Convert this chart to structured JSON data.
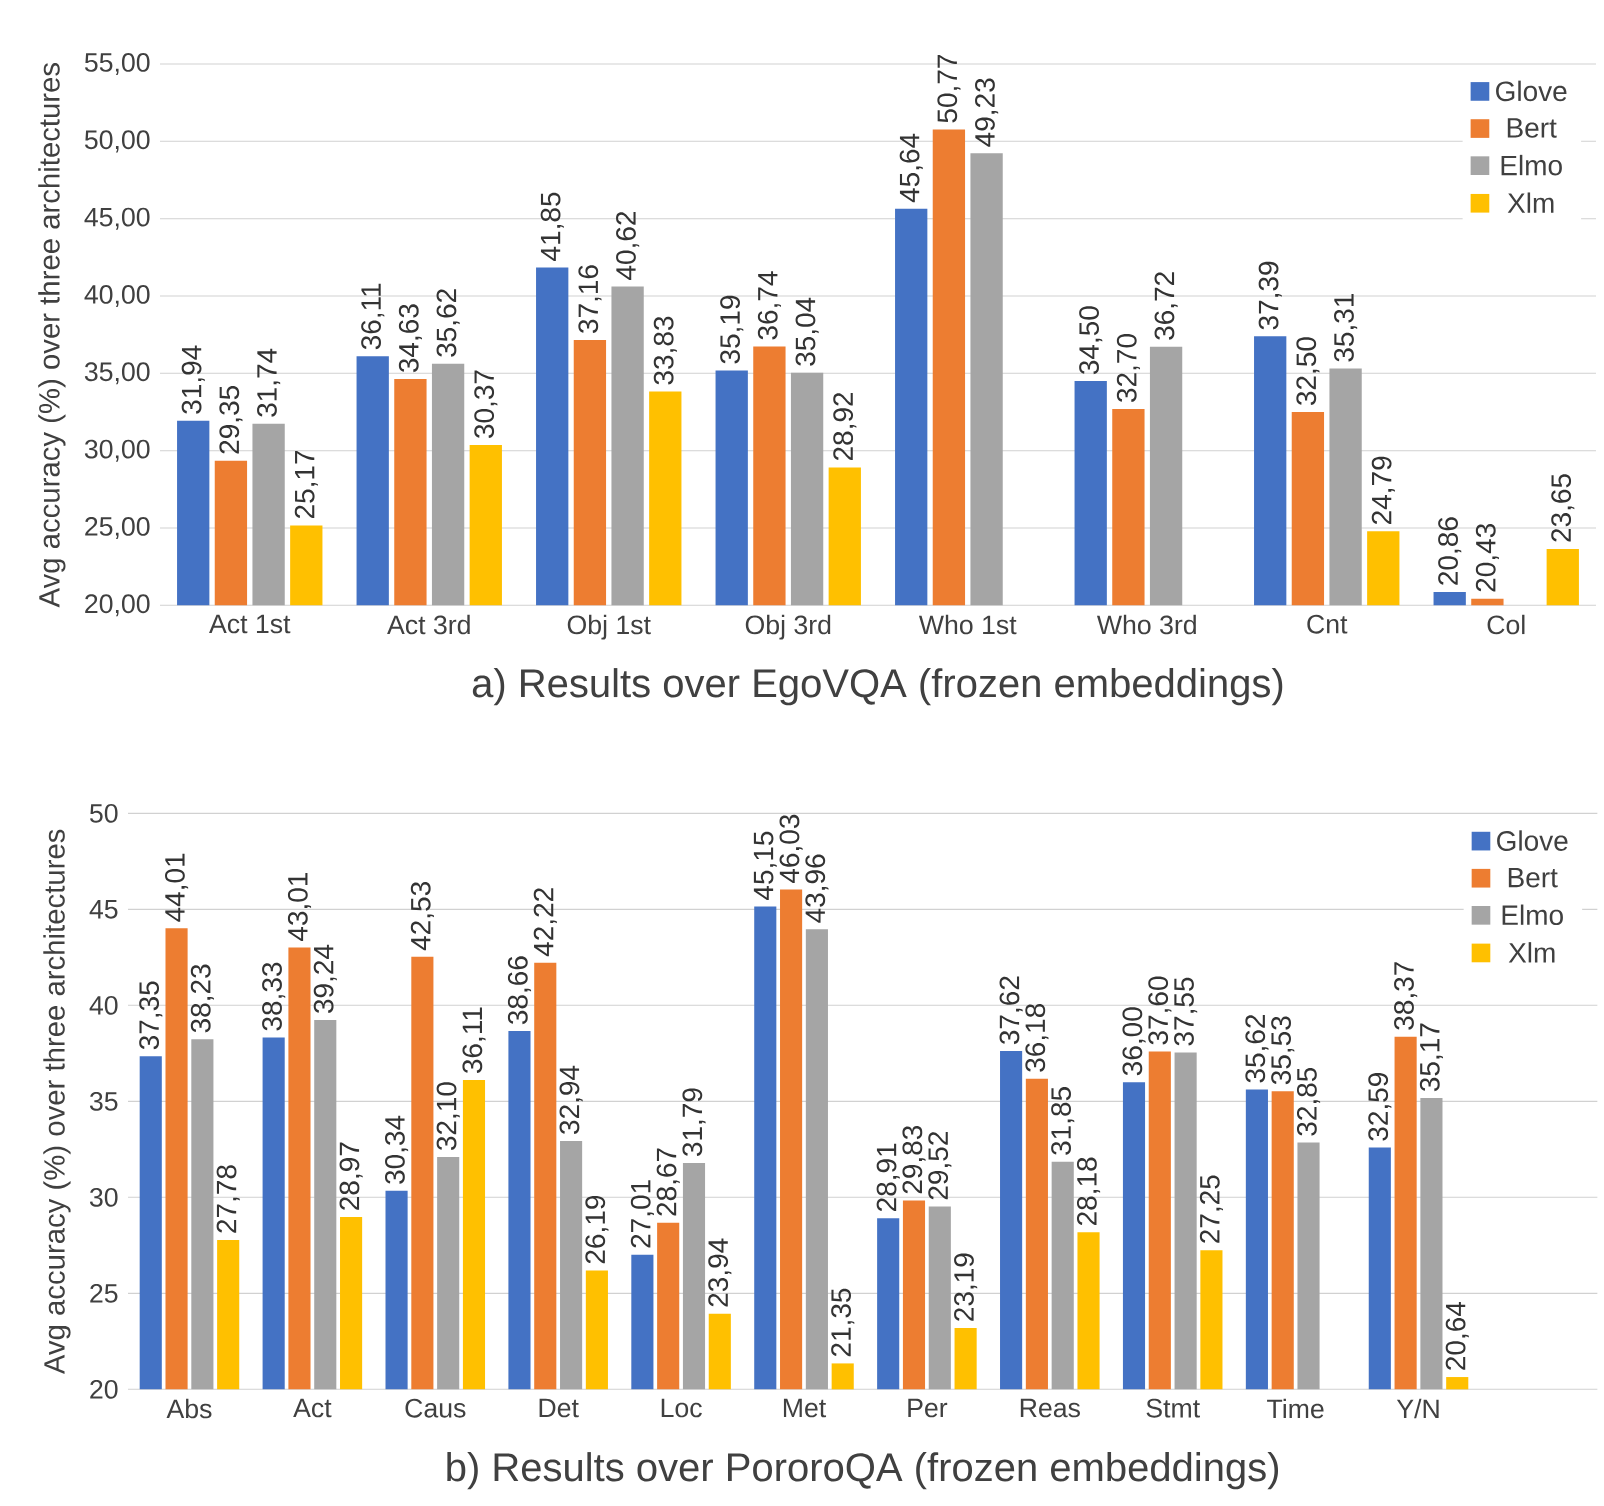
{
  "chart_data": [
    {
      "type": "bar",
      "title": "a) Results over EgoVQA (frozen embeddings)",
      "ylabel": "Avg accuracy (%) over three architectures",
      "categories": [
        "Act 1st",
        "Act 3rd",
        "Obj 1st",
        "Obj 3rd",
        "Who 1st",
        "Who 3rd",
        "Cnt",
        "Col"
      ],
      "series": [
        {
          "name": "Glove",
          "color": "#4472c4",
          "values": [
            31.94,
            36.11,
            41.85,
            35.19,
            45.64,
            34.5,
            37.39,
            20.86
          ],
          "value_labels": [
            "31,94",
            "36,11",
            "41,85",
            "35,19",
            "45,64",
            "34,50",
            "37,39",
            "20,86"
          ]
        },
        {
          "name": "Bert",
          "color": "#ed7d31",
          "values": [
            29.35,
            34.63,
            37.16,
            36.74,
            50.77,
            32.7,
            32.5,
            20.43
          ],
          "value_labels": [
            "29,35",
            "34,63",
            "37,16",
            "36,74",
            "50,77",
            "32,70",
            "32,50",
            "20,43"
          ]
        },
        {
          "name": "Elmo",
          "color": "#a5a5a5",
          "values": [
            31.74,
            35.62,
            40.62,
            35.04,
            49.23,
            36.72,
            35.31,
            null
          ],
          "value_labels": [
            "31,74",
            "35,62",
            "40,62",
            "35,04",
            "49,23",
            "36,72",
            "35,31",
            null
          ]
        },
        {
          "name": "Xlm",
          "color": "#ffc000",
          "values": [
            25.17,
            30.37,
            33.83,
            28.92,
            null,
            null,
            24.79,
            23.65
          ],
          "value_labels": [
            "25,17",
            "30,37",
            "33,83",
            "28,92",
            null,
            null,
            "24,79",
            "23,65"
          ]
        }
      ],
      "ylim": [
        20,
        55
      ],
      "yticks": [
        {
          "value": 20,
          "label": "20,00"
        },
        {
          "value": 25,
          "label": "25,00"
        },
        {
          "value": 30,
          "label": "30,00"
        },
        {
          "value": 35,
          "label": "35,00"
        },
        {
          "value": 40,
          "label": "40,00"
        },
        {
          "value": 45,
          "label": "45,00"
        },
        {
          "value": 50,
          "label": "50,00"
        },
        {
          "value": 55,
          "label": "55,00"
        }
      ],
      "grid": "y",
      "legend": "top right"
    },
    {
      "type": "bar",
      "title": "b) Results over PororoQA (frozen embeddings)",
      "ylabel": "Avg accuracy (%) over three architectures",
      "categories": [
        "Abs",
        "Act",
        "Caus",
        "Det",
        "Loc",
        "Met",
        "Per",
        "Reas",
        "Stmt",
        "Time",
        "Y/N"
      ],
      "series": [
        {
          "name": "Glove",
          "color": "#4472c4",
          "values": [
            37.35,
            38.33,
            30.34,
            38.66,
            27.01,
            45.15,
            28.91,
            37.62,
            36.0,
            35.62,
            32.59
          ],
          "value_labels": [
            "37,35",
            "38,33",
            "30,34",
            "38,66",
            "27,01",
            "45,15",
            "28,91",
            "37,62",
            "36,00",
            "35,62",
            "32,59"
          ]
        },
        {
          "name": "Bert",
          "color": "#ed7d31",
          "values": [
            44.01,
            43.01,
            42.53,
            42.22,
            28.67,
            46.03,
            29.83,
            36.18,
            37.6,
            35.53,
            38.37
          ],
          "value_labels": [
            "44,01",
            "43,01",
            "42,53",
            "42,22",
            "28,67",
            "46,03",
            "29,83",
            "36,18",
            "37,60",
            "35,53",
            "38,37"
          ]
        },
        {
          "name": "Elmo",
          "color": "#a5a5a5",
          "values": [
            38.23,
            39.24,
            32.1,
            32.94,
            31.79,
            43.96,
            29.52,
            31.85,
            37.55,
            32.85,
            35.17
          ],
          "value_labels": [
            "38,23",
            "39,24",
            "32,10",
            "32,94",
            "31,79",
            "43,96",
            "29,52",
            "31,85",
            "37,55",
            "32,85",
            "35,17"
          ]
        },
        {
          "name": "Xlm",
          "color": "#ffc000",
          "values": [
            27.78,
            28.97,
            36.11,
            26.19,
            23.94,
            21.35,
            23.19,
            28.18,
            27.25,
            null,
            20.64
          ],
          "value_labels": [
            "27,78",
            "28,97",
            "36,11",
            "26,19",
            "23,94",
            "21,35",
            "23,19",
            "28,18",
            "27,25",
            null,
            "20,64"
          ]
        }
      ],
      "ylim": [
        20,
        50
      ],
      "yticks": [
        20,
        25,
        30,
        35,
        40,
        45,
        50
      ],
      "grid": "y",
      "legend": "top right"
    }
  ]
}
